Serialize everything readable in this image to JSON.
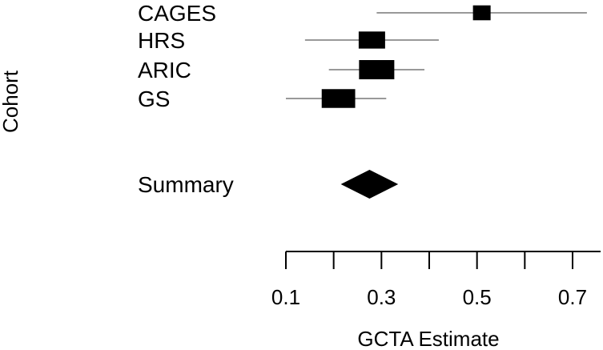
{
  "chart_data": {
    "type": "forest",
    "xlabel": "GCTA Estimate",
    "ylabel": "Cohort",
    "xlim": [
      0.1,
      0.7
    ],
    "xticks": [
      0.1,
      0.2,
      0.3,
      0.4,
      0.5,
      0.6,
      0.7
    ],
    "xtick_labels": [
      "0.1",
      "",
      "0.3",
      "",
      "0.5",
      "",
      "0.7"
    ],
    "rows": [
      {
        "label": "CAGES",
        "estimate": 0.51,
        "lower": 0.29,
        "upper": 0.73,
        "weight": 0.5
      },
      {
        "label": "HRS",
        "estimate": 0.28,
        "lower": 0.14,
        "upper": 0.42,
        "weight": 0.75
      },
      {
        "label": "ARIC",
        "estimate": 0.29,
        "lower": 0.19,
        "upper": 0.39,
        "weight": 1.0
      },
      {
        "label": "GS",
        "estimate": 0.21,
        "lower": 0.1,
        "upper": 0.31,
        "weight": 0.95
      }
    ],
    "summary": {
      "label": "Summary",
      "estimate": 0.275,
      "lower": 0.215,
      "upper": 0.335
    },
    "colors": {
      "box": "#000000",
      "ci_line": "#999999",
      "summary": "#000000",
      "axis": "#000000"
    }
  }
}
